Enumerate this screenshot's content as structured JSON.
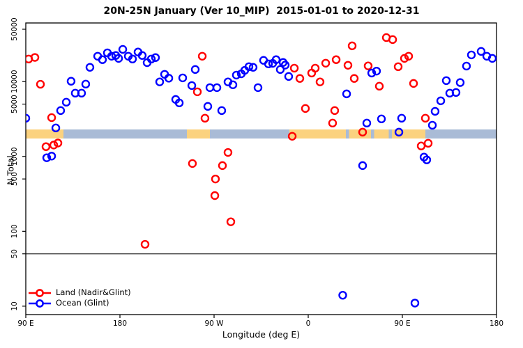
{
  "title": "20N-25N January (Ver 10_MIP)  2015-01-01 to 2020-12-31",
  "chart_data": {
    "type": "scatter",
    "title": "20N-25N January (Ver 10_MIP)  2015-01-01 to 2020-12-31",
    "xlabel": "Longitude (deg E)",
    "ylabel": "N Total",
    "x_axis": {
      "range": [
        90,
        540
      ],
      "ticks": [
        {
          "value": 90,
          "label": "90 E"
        },
        {
          "value": 180,
          "label": "180"
        },
        {
          "value": 270,
          "label": "90 W"
        },
        {
          "value": 360,
          "label": "0"
        },
        {
          "value": 450,
          "label": "90 E"
        },
        {
          "value": 540,
          "label": "180"
        }
      ]
    },
    "y_axis": {
      "scale": "log",
      "range": [
        10,
        50000
      ],
      "ticks": [
        {
          "value": 10,
          "label": "10"
        },
        {
          "value": 50,
          "label": "50"
        },
        {
          "value": 100,
          "label": "100"
        },
        {
          "value": 500,
          "label": "500"
        },
        {
          "value": 1000,
          "label": "1000"
        },
        {
          "value": 5000,
          "label": "5000"
        },
        {
          "value": 10000,
          "label": "10000"
        },
        {
          "value": 50000,
          "label": "50000"
        }
      ]
    },
    "threshold_line": {
      "value": 50,
      "color": "#3f3f3f"
    },
    "map_band": {
      "land_color": "#FBD27F",
      "ocean_color": "#A9BBD6",
      "segments": [
        {
          "type": "land",
          "lon_start": 90,
          "lon_end": 126
        },
        {
          "type": "ocean",
          "lon_start": 126,
          "lon_end": 244
        },
        {
          "type": "land",
          "lon_start": 244,
          "lon_end": 266
        },
        {
          "type": "ocean",
          "lon_start": 266,
          "lon_end": 342
        },
        {
          "type": "land",
          "lon_start": 342,
          "lon_end": 396
        },
        {
          "type": "ocean",
          "lon_start": 396,
          "lon_end": 399
        },
        {
          "type": "land",
          "lon_start": 399,
          "lon_end": 420
        },
        {
          "type": "ocean",
          "lon_start": 420,
          "lon_end": 423
        },
        {
          "type": "land",
          "lon_start": 423,
          "lon_end": 437
        },
        {
          "type": "ocean",
          "lon_start": 437,
          "lon_end": 440
        },
        {
          "type": "land",
          "lon_start": 440,
          "lon_end": 468
        },
        {
          "type": "land",
          "lon_start": 468,
          "lon_end": 472
        },
        {
          "type": "ocean",
          "lon_start": 472,
          "lon_end": 540
        }
      ]
    },
    "series": [
      {
        "name": "Land (Nadir&Glint)",
        "color": "#FF0000",
        "points": [
          {
            "lon": 92.7,
            "n": 20000
          },
          {
            "lon": 98.7,
            "n": 21000
          },
          {
            "lon": 104,
            "n": 9200
          },
          {
            "lon": 114.7,
            "n": 3300
          },
          {
            "lon": 109.3,
            "n": 1350
          },
          {
            "lon": 116.7,
            "n": 1420
          },
          {
            "lon": 120.7,
            "n": 1510
          },
          {
            "lon": 204,
            "n": 67
          },
          {
            "lon": 249.3,
            "n": 805
          },
          {
            "lon": 254,
            "n": 7300
          },
          {
            "lon": 258.7,
            "n": 21800
          },
          {
            "lon": 261.3,
            "n": 3240
          },
          {
            "lon": 271.3,
            "n": 500
          },
          {
            "lon": 270.7,
            "n": 300
          },
          {
            "lon": 278,
            "n": 755
          },
          {
            "lon": 283.3,
            "n": 1130
          },
          {
            "lon": 286,
            "n": 134
          },
          {
            "lon": 344.7,
            "n": 1860
          },
          {
            "lon": 346.7,
            "n": 15100
          },
          {
            "lon": 352,
            "n": 11000
          },
          {
            "lon": 357.3,
            "n": 4370
          },
          {
            "lon": 363.3,
            "n": 13000
          },
          {
            "lon": 366.7,
            "n": 15100
          },
          {
            "lon": 371.3,
            "n": 9900
          },
          {
            "lon": 376.7,
            "n": 17600
          },
          {
            "lon": 386.7,
            "n": 19600
          },
          {
            "lon": 385.3,
            "n": 4100
          },
          {
            "lon": 383.3,
            "n": 2790
          },
          {
            "lon": 398,
            "n": 16500
          },
          {
            "lon": 402,
            "n": 30000
          },
          {
            "lon": 404,
            "n": 11000
          },
          {
            "lon": 412,
            "n": 2110
          },
          {
            "lon": 417.3,
            "n": 16200
          },
          {
            "lon": 428,
            "n": 8670
          },
          {
            "lon": 434.7,
            "n": 38700
          },
          {
            "lon": 440.7,
            "n": 36400
          },
          {
            "lon": 446,
            "n": 15800
          },
          {
            "lon": 452,
            "n": 20400
          },
          {
            "lon": 456,
            "n": 21800
          },
          {
            "lon": 460.7,
            "n": 9440
          },
          {
            "lon": 468,
            "n": 1380
          },
          {
            "lon": 474.7,
            "n": 1500
          },
          {
            "lon": 472,
            "n": 3240
          }
        ]
      },
      {
        "name": "Ocean (Glint)",
        "color": "#0000FF",
        "points": [
          {
            "lon": 90,
            "n": 3240
          },
          {
            "lon": 118.7,
            "n": 2400
          },
          {
            "lon": 123.3,
            "n": 4100
          },
          {
            "lon": 128.7,
            "n": 5300
          },
          {
            "lon": 133.3,
            "n": 10100
          },
          {
            "lon": 137.3,
            "n": 7000
          },
          {
            "lon": 143.3,
            "n": 7000
          },
          {
            "lon": 147.3,
            "n": 9250
          },
          {
            "lon": 151.3,
            "n": 15500
          },
          {
            "lon": 158.7,
            "n": 21800
          },
          {
            "lon": 163.3,
            "n": 19600
          },
          {
            "lon": 168,
            "n": 24200
          },
          {
            "lon": 172,
            "n": 21800
          },
          {
            "lon": 176,
            "n": 22300
          },
          {
            "lon": 178.7,
            "n": 20400
          },
          {
            "lon": 182.7,
            "n": 26900
          },
          {
            "lon": 188,
            "n": 21800
          },
          {
            "lon": 192,
            "n": 20000
          },
          {
            "lon": 197.3,
            "n": 24800
          },
          {
            "lon": 201.3,
            "n": 22300
          },
          {
            "lon": 206,
            "n": 17900
          },
          {
            "lon": 210,
            "n": 20000
          },
          {
            "lon": 214,
            "n": 20900
          },
          {
            "lon": 218,
            "n": 9900
          },
          {
            "lon": 222.7,
            "n": 12500
          },
          {
            "lon": 226.7,
            "n": 11100
          },
          {
            "lon": 233.3,
            "n": 5770
          },
          {
            "lon": 236.7,
            "n": 5190
          },
          {
            "lon": 240,
            "n": 11200
          },
          {
            "lon": 248.7,
            "n": 8850
          },
          {
            "lon": 252,
            "n": 14500
          },
          {
            "lon": 264,
            "n": 4660
          },
          {
            "lon": 266,
            "n": 8300
          },
          {
            "lon": 272.7,
            "n": 8300
          },
          {
            "lon": 277.3,
            "n": 4100
          },
          {
            "lon": 283.3,
            "n": 9900
          },
          {
            "lon": 288,
            "n": 9050
          },
          {
            "lon": 291.3,
            "n": 12200
          },
          {
            "lon": 296,
            "n": 12700
          },
          {
            "lon": 299.3,
            "n": 14100
          },
          {
            "lon": 303.3,
            "n": 15800
          },
          {
            "lon": 307.3,
            "n": 15500
          },
          {
            "lon": 312,
            "n": 8300
          },
          {
            "lon": 317.3,
            "n": 19200
          },
          {
            "lon": 322,
            "n": 17200
          },
          {
            "lon": 326,
            "n": 17500
          },
          {
            "lon": 329.3,
            "n": 19600
          },
          {
            "lon": 333.3,
            "n": 14500
          },
          {
            "lon": 336,
            "n": 18000
          },
          {
            "lon": 338,
            "n": 16600
          },
          {
            "lon": 341.3,
            "n": 11700
          },
          {
            "lon": 396.7,
            "n": 6850
          },
          {
            "lon": 416,
            "n": 2790
          },
          {
            "lon": 420.7,
            "n": 13000
          },
          {
            "lon": 425.3,
            "n": 13800
          },
          {
            "lon": 430,
            "n": 3170
          },
          {
            "lon": 446.7,
            "n": 2110
          },
          {
            "lon": 449.3,
            "n": 3240
          },
          {
            "lon": 470.7,
            "n": 980
          },
          {
            "lon": 473.3,
            "n": 900
          },
          {
            "lon": 478.7,
            "n": 2610
          },
          {
            "lon": 481.3,
            "n": 4000
          },
          {
            "lon": 486.7,
            "n": 5530
          },
          {
            "lon": 492,
            "n": 10300
          },
          {
            "lon": 495.3,
            "n": 7000
          },
          {
            "lon": 501.3,
            "n": 7150
          },
          {
            "lon": 505.3,
            "n": 9700
          },
          {
            "lon": 511.3,
            "n": 16100
          },
          {
            "lon": 516,
            "n": 22700
          },
          {
            "lon": 525.3,
            "n": 25300
          },
          {
            "lon": 530.7,
            "n": 21800
          },
          {
            "lon": 536,
            "n": 20400
          },
          {
            "lon": 412,
            "n": 755
          },
          {
            "lon": 110,
            "n": 960
          },
          {
            "lon": 114.7,
            "n": 1010
          },
          {
            "lon": 393,
            "n": 14
          },
          {
            "lon": 462,
            "n": 11
          }
        ]
      }
    ],
    "legend_position": "bottom-left",
    "grid": false
  }
}
